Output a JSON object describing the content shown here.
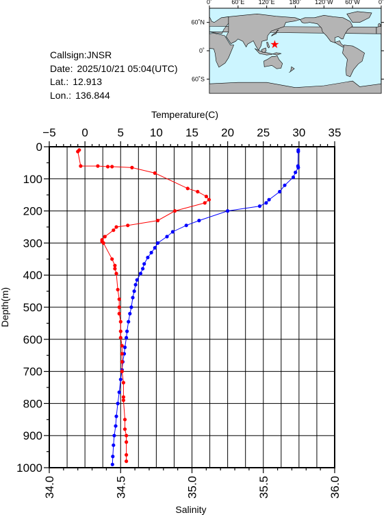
{
  "info": {
    "callsign": "Callsign:JNSR",
    "date_label": "Date:",
    "date_value": "2025/10/21 05:04(UTC)",
    "lat_label": "Lat.:",
    "lat_value": "12.913",
    "lon_label": "Lon.:",
    "lon_value": "136.844"
  },
  "map": {
    "lon_labels": [
      "0˚",
      "60˚E",
      "120˚E",
      "180˚",
      "120˚W",
      "60˚W",
      "0˚"
    ],
    "lat_labels": [
      "60˚N",
      "0˚",
      "60˚S"
    ],
    "ocean_color": "#ccf5ff",
    "land_color": "#b4b4b4",
    "marker_color": "#ff0000",
    "station": {
      "lon": 136.844,
      "lat": 12.913
    }
  },
  "chart_data": {
    "type": "line",
    "y_axis": {
      "label": "Depth(m)",
      "range": [
        0,
        1000
      ],
      "inverted": true,
      "ticks": [
        "0",
        "100",
        "200",
        "300",
        "400",
        "500",
        "600",
        "700",
        "800",
        "900",
        "1000"
      ]
    },
    "top_axis": {
      "label": "Temperature(C)",
      "range": [
        -5,
        35
      ],
      "ticks": [
        "−5",
        "0",
        "5",
        "10",
        "15",
        "20",
        "25",
        "30",
        "35"
      ]
    },
    "bottom_axis": {
      "label": "Salinity",
      "range": [
        34.0,
        36.0
      ],
      "ticks": [
        "34.0",
        "34.5",
        "35.0",
        "35.5",
        "36.0"
      ]
    },
    "grid": true,
    "series": [
      {
        "axis": "top",
        "color": "#0000ff",
        "points": [
          [
            29.9,
            10
          ],
          [
            29.9,
            15
          ],
          [
            29.85,
            60
          ],
          [
            29.9,
            65
          ],
          [
            29.5,
            80
          ],
          [
            29.2,
            95
          ],
          [
            28.0,
            120
          ],
          [
            27.3,
            140
          ],
          [
            25.8,
            165
          ],
          [
            25.4,
            175
          ],
          [
            24.5,
            185
          ],
          [
            20.0,
            200
          ],
          [
            16.0,
            230
          ],
          [
            14.2,
            245
          ],
          [
            12.3,
            265
          ],
          [
            11.5,
            280
          ],
          [
            10.2,
            300
          ],
          [
            9.8,
            315
          ],
          [
            9.3,
            330
          ],
          [
            8.8,
            345
          ],
          [
            8.3,
            365
          ],
          [
            8.1,
            380
          ],
          [
            7.8,
            395
          ],
          [
            7.3,
            415
          ],
          [
            7.1,
            430
          ],
          [
            6.9,
            450
          ],
          [
            6.7,
            470
          ],
          [
            6.5,
            500
          ],
          [
            6.3,
            520
          ],
          [
            6.1,
            545
          ],
          [
            5.9,
            575
          ],
          [
            5.8,
            595
          ],
          [
            5.6,
            625
          ],
          [
            5.5,
            645
          ],
          [
            5.3,
            670
          ],
          [
            5.2,
            695
          ],
          [
            5.0,
            725
          ],
          [
            4.8,
            765
          ],
          [
            4.6,
            800
          ],
          [
            4.4,
            840
          ],
          [
            4.3,
            870
          ],
          [
            4.1,
            900
          ],
          [
            4.0,
            930
          ],
          [
            3.9,
            965
          ],
          [
            3.85,
            990
          ]
        ]
      },
      {
        "axis": "bottom",
        "color": "#ff0000",
        "points": [
          [
            34.21,
            10
          ],
          [
            34.2,
            15
          ],
          [
            34.22,
            60
          ],
          [
            34.34,
            60
          ],
          [
            34.41,
            62
          ],
          [
            34.44,
            62
          ],
          [
            34.58,
            65
          ],
          [
            34.74,
            82
          ],
          [
            34.97,
            130
          ],
          [
            35.04,
            140
          ],
          [
            35.1,
            155
          ],
          [
            35.12,
            165
          ],
          [
            35.09,
            175
          ],
          [
            34.88,
            200
          ],
          [
            34.76,
            230
          ],
          [
            34.55,
            245
          ],
          [
            34.47,
            250
          ],
          [
            34.45,
            260
          ],
          [
            34.39,
            280
          ],
          [
            34.37,
            290
          ],
          [
            34.37,
            295
          ],
          [
            34.38,
            300
          ],
          [
            34.44,
            350
          ],
          [
            34.46,
            370
          ],
          [
            34.46,
            380
          ],
          [
            34.47,
            395
          ],
          [
            34.48,
            445
          ],
          [
            34.49,
            475
          ],
          [
            34.49,
            500
          ],
          [
            34.49,
            520
          ],
          [
            34.5,
            545
          ],
          [
            34.5,
            575
          ],
          [
            34.5,
            595
          ],
          [
            34.51,
            620
          ],
          [
            34.51,
            645
          ],
          [
            34.51,
            670
          ],
          [
            34.51,
            700
          ],
          [
            34.52,
            735
          ],
          [
            34.52,
            780
          ],
          [
            34.52,
            790
          ],
          [
            34.53,
            850
          ],
          [
            34.53,
            880
          ],
          [
            34.54,
            900
          ],
          [
            34.54,
            920
          ],
          [
            34.54,
            960
          ],
          [
            34.54,
            980
          ]
        ]
      }
    ]
  }
}
